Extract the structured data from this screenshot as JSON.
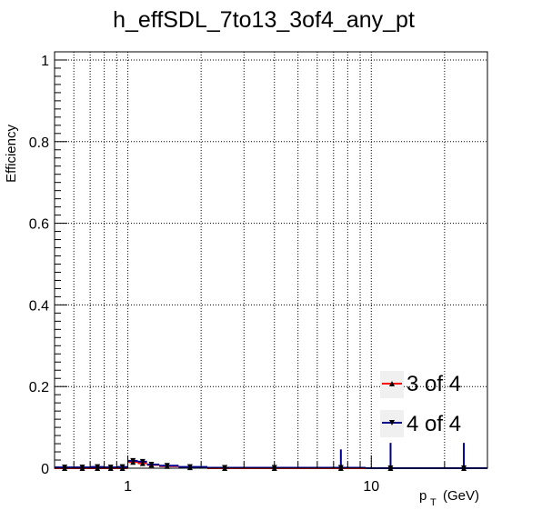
{
  "chart_data": {
    "type": "scatter",
    "title": "h_effSDL_7to13_3of4_any_pt",
    "xlabel": "(GeV)",
    "xlabel_main": "p",
    "xlabel_sub": "T",
    "ylabel": "Efficiency",
    "xscale": "log",
    "xlim": [
      0.5,
      30
    ],
    "ylim": [
      0,
      1.02
    ],
    "grid": true,
    "legend_position": "bottom-right",
    "x_tick_labels": [
      {
        "value": 1,
        "label": "1"
      },
      {
        "value": 10,
        "label": "10"
      }
    ],
    "y_tick_labels": [
      {
        "value": 0,
        "label": "0"
      },
      {
        "value": 0.2,
        "label": "0.2"
      },
      {
        "value": 0.4,
        "label": "0.4"
      },
      {
        "value": 0.6,
        "label": "0.6"
      },
      {
        "value": 0.8,
        "label": "0.8"
      },
      {
        "value": 1,
        "label": "1"
      }
    ],
    "series": [
      {
        "name": "3 of 4",
        "color": "#ff0000",
        "marker": "triangle-up",
        "x": [
          0.55,
          0.65,
          0.75,
          0.85,
          0.95,
          1.05,
          1.15,
          1.25,
          1.45,
          1.8,
          2.5,
          4,
          7.5,
          12,
          24
        ],
        "y": [
          0,
          0,
          0,
          0,
          0,
          0.015,
          0.012,
          0.008,
          0.005,
          0.002,
          0,
          0,
          0,
          0,
          0
        ]
      },
      {
        "name": "4 of 4",
        "color": "#00008b",
        "marker": "triangle-down",
        "x": [
          0.55,
          0.65,
          0.75,
          0.85,
          0.95,
          1.05,
          1.15,
          1.25,
          1.45,
          1.8,
          2.5,
          4,
          7.5,
          12,
          24
        ],
        "y": [
          0.002,
          0.002,
          0.003,
          0.002,
          0.003,
          0.018,
          0.016,
          0.009,
          0.006,
          0.003,
          0.001,
          0.001,
          0.001,
          0,
          0
        ],
        "err_up": [
          0.003,
          0.003,
          0.004,
          0.003,
          0.004,
          0.006,
          0.005,
          0.004,
          0.004,
          0.003,
          0.002,
          0.006,
          0.045,
          0.062,
          0.062
        ]
      }
    ]
  },
  "colors": {
    "three_of_four": "#ff0000",
    "four_of_four": "#00008b",
    "legend_bg": "#f0f0f0"
  }
}
